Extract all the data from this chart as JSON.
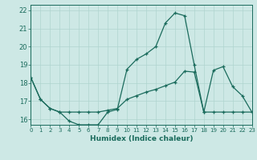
{
  "line1_x": [
    0,
    1,
    2,
    3,
    4,
    5,
    6,
    7,
    8,
    9,
    10,
    11,
    12,
    13,
    14,
    15,
    16,
    17,
    18,
    19,
    20,
    21,
    22,
    23
  ],
  "line1_y": [
    18.3,
    17.1,
    16.6,
    16.4,
    15.9,
    15.7,
    15.7,
    15.7,
    16.4,
    16.55,
    18.75,
    19.3,
    19.6,
    20.0,
    21.3,
    21.85,
    21.7,
    19.0,
    16.4,
    18.7,
    18.9,
    17.8,
    17.3,
    16.4
  ],
  "line2_x": [
    0,
    1,
    2,
    3,
    4,
    5,
    6,
    7,
    8,
    9,
    10,
    11,
    12,
    13,
    14,
    15,
    16,
    17,
    18,
    19,
    20,
    21,
    22,
    23
  ],
  "line2_y": [
    18.3,
    17.1,
    16.6,
    16.4,
    16.4,
    16.4,
    16.4,
    16.4,
    16.5,
    16.6,
    17.1,
    17.3,
    17.5,
    17.65,
    17.85,
    18.05,
    18.65,
    18.6,
    16.4,
    16.4,
    16.4,
    16.4,
    16.4,
    16.4
  ],
  "line_color": "#1a6b5c",
  "bg_color": "#cde8e5",
  "grid_color": "#afd4cf",
  "xlim": [
    0,
    23
  ],
  "ylim": [
    15.7,
    22.3
  ],
  "yticks": [
    16,
    17,
    18,
    19,
    20,
    21,
    22
  ],
  "xtick_labels": [
    "0",
    "1",
    "2",
    "3",
    "4",
    "5",
    "6",
    "7",
    "8",
    "9",
    "10",
    "11",
    "12",
    "13",
    "14",
    "15",
    "16",
    "17",
    "18",
    "19",
    "20",
    "21",
    "22",
    "23"
  ],
  "xlabel": "Humidex (Indice chaleur)"
}
